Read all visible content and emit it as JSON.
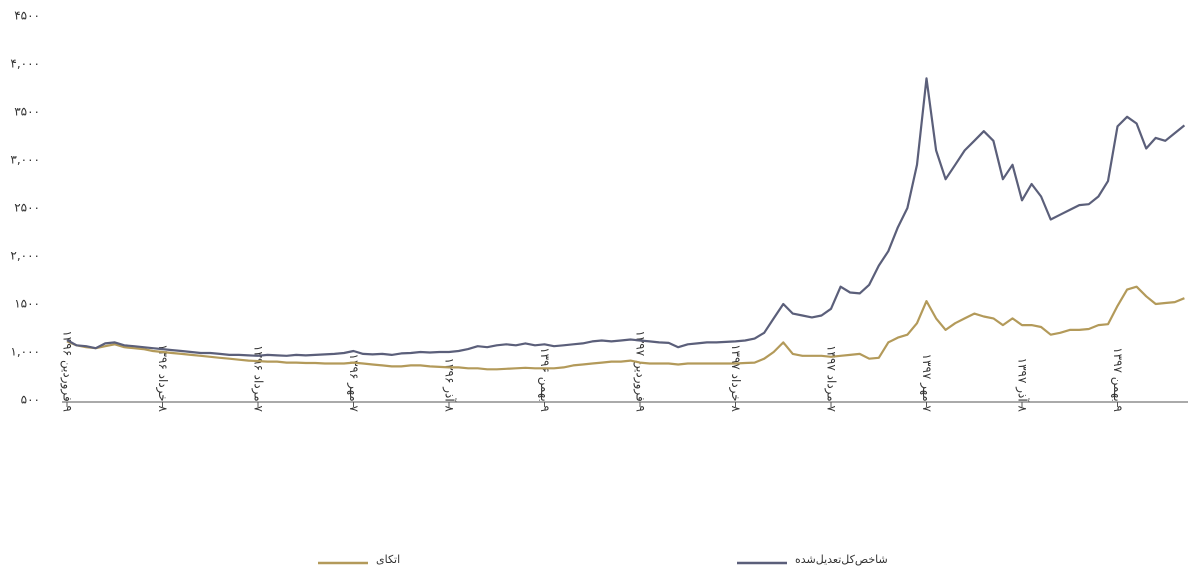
{
  "chart_data": {
    "type": "line",
    "categories": [
      "۹ فروردین ۱۳۹۶",
      null,
      null,
      null,
      null,
      null,
      null,
      null,
      null,
      null,
      "۸ خرداد ۱۳۹۶",
      null,
      null,
      null,
      null,
      null,
      null,
      null,
      null,
      null,
      "۷ مرداد ۱۳۹۶",
      null,
      null,
      null,
      null,
      null,
      null,
      null,
      null,
      null,
      "۷ مهر ۱۳۹۶",
      null,
      null,
      null,
      null,
      null,
      null,
      null,
      null,
      null,
      "۸ آذر ۱۳۹۶",
      null,
      null,
      null,
      null,
      null,
      null,
      null,
      null,
      null,
      "۹ بهمن ۱۳۹۶",
      null,
      null,
      null,
      null,
      null,
      null,
      null,
      null,
      null,
      "۹ فروردین ۱۳۹۷",
      null,
      null,
      null,
      null,
      null,
      null,
      null,
      null,
      null,
      "۸ خرداد ۱۳۹۷",
      null,
      null,
      null,
      null,
      null,
      null,
      null,
      null,
      null,
      "۷ مرداد ۱۳۹۷",
      null,
      null,
      null,
      null,
      null,
      null,
      null,
      null,
      null,
      "۷ مهر ۱۳۹۷",
      null,
      null,
      null,
      null,
      null,
      null,
      null,
      null,
      null,
      "۸ آذر ۱۳۹۷",
      null,
      null,
      null,
      null,
      null,
      null,
      null,
      null,
      null,
      "۹ بهمن ۱۳۹۷",
      null,
      null,
      null,
      null,
      null,
      null,
      null
    ],
    "series": [
      {
        "name": "اتکای",
        "color": "#b39a5a",
        "values": [
          1110,
          1070,
          1050,
          1040,
          1060,
          1080,
          1050,
          1040,
          1030,
          1010,
          1000,
          990,
          980,
          970,
          960,
          950,
          940,
          930,
          920,
          910,
          905,
          900,
          900,
          890,
          890,
          885,
          885,
          880,
          880,
          880,
          890,
          880,
          870,
          860,
          850,
          850,
          860,
          860,
          850,
          845,
          840,
          840,
          830,
          830,
          820,
          820,
          825,
          830,
          835,
          830,
          830,
          830,
          840,
          860,
          870,
          880,
          890,
          900,
          900,
          910,
          890,
          880,
          880,
          880,
          870,
          880,
          880,
          880,
          880,
          880,
          880,
          885,
          890,
          930,
          1000,
          1100,
          980,
          960,
          960,
          960,
          950,
          960,
          970,
          980,
          930,
          940,
          1100,
          1150,
          1180,
          1300,
          1530,
          1350,
          1230,
          1300,
          1350,
          1400,
          1370,
          1350,
          1280,
          1350,
          1280,
          1280,
          1260,
          1180,
          1200,
          1230,
          1230,
          1240,
          1280,
          1290,
          1480,
          1650,
          1680,
          1580,
          1500,
          1510,
          1520,
          1560
        ]
      },
      {
        "name": "شاخص‌کل‌تعدیل‌شده",
        "color": "#5b5f7a",
        "values": [
          1125,
          1070,
          1060,
          1040,
          1090,
          1100,
          1070,
          1060,
          1050,
          1040,
          1030,
          1020,
          1010,
          1000,
          990,
          990,
          980,
          970,
          970,
          965,
          960,
          970,
          965,
          960,
          970,
          965,
          970,
          975,
          980,
          990,
          1010,
          980,
          975,
          980,
          970,
          985,
          990,
          1000,
          995,
          1000,
          1000,
          1010,
          1030,
          1060,
          1050,
          1070,
          1080,
          1070,
          1090,
          1070,
          1080,
          1060,
          1070,
          1080,
          1090,
          1110,
          1120,
          1110,
          1120,
          1130,
          1120,
          1110,
          1100,
          1095,
          1050,
          1080,
          1090,
          1100,
          1100,
          1105,
          1110,
          1120,
          1140,
          1200,
          1350,
          1500,
          1400,
          1380,
          1360,
          1380,
          1450,
          1680,
          1620,
          1610,
          1700,
          1900,
          2050,
          2300,
          2500,
          2950,
          3850,
          3100,
          2800,
          2950,
          3100,
          3200,
          3300,
          3200,
          2800,
          2950,
          2580,
          2750,
          2620,
          2380,
          2430,
          2480,
          2530,
          2540,
          2620,
          2780,
          3350,
          3450,
          3380,
          3120,
          3230,
          3200,
          3280,
          3360
        ]
      }
    ],
    "ylim": [
      500,
      4500
    ],
    "yticks": [
      {
        "value": 500,
        "label": "۵۰۰"
      },
      {
        "value": 1000,
        "label": "۱,۰۰۰"
      },
      {
        "value": 1500,
        "label": "۱۵۰۰"
      },
      {
        "value": 2000,
        "label": "۲,۰۰۰"
      },
      {
        "value": 2500,
        "label": "۲۵۰۰"
      },
      {
        "value": 3000,
        "label": "۳,۰۰۰"
      },
      {
        "value": 3500,
        "label": "۳۵۰۰"
      },
      {
        "value": 4000,
        "label": "۴,۰۰۰"
      },
      {
        "value": 4500,
        "label": "۴۵۰۰"
      }
    ],
    "grid": false
  }
}
